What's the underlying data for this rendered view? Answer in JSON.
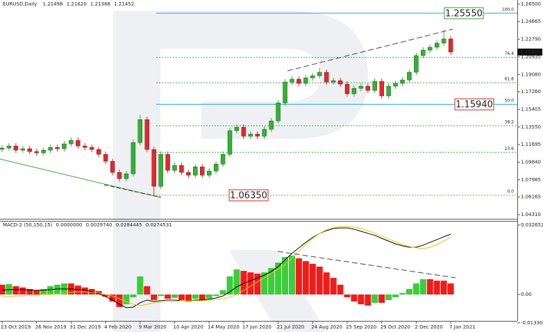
{
  "chart_data": [
    {
      "type": "candlestick",
      "title": "EURUSD,Daily",
      "last_bar": [
        {
          "value": 1.21498,
          "label": "1.21498"
        },
        {
          "value": 1.2162,
          "label": "1.21620"
        },
        {
          "value": 1.21388,
          "label": "1.21388"
        },
        {
          "value": 1.21452,
          "label": "1.21452"
        }
      ],
      "categories": [
        "23 Oct 2019",
        null,
        null,
        null,
        null,
        "26 Nov 2019",
        null,
        null,
        null,
        null,
        "31 Dec 2019",
        null,
        null,
        null,
        null,
        "4 Feb 2020",
        null,
        null,
        null,
        null,
        "9 Mar 2020",
        null,
        null,
        null,
        null,
        "10 Apr 2020",
        null,
        null,
        null,
        null,
        "14 May 2020",
        null,
        null,
        null,
        null,
        "17 Jun 2020",
        null,
        null,
        null,
        null,
        "21 Jul 2020",
        null,
        null,
        null,
        null,
        "24 Aug 2020",
        null,
        null,
        null,
        null,
        "25 Sep 2020",
        null,
        null,
        null,
        null,
        "29 Oct 2020",
        null,
        null,
        null,
        null,
        "2 Dec 2020",
        null,
        null,
        null,
        null,
        "7 Jan 2021"
      ],
      "open": [
        1.112,
        1.1133,
        1.1155,
        1.1111,
        1.1126,
        1.1096,
        1.1082,
        1.1111,
        1.114,
        1.1126,
        1.1177,
        1.1214,
        1.1155,
        1.114,
        1.1118,
        1.1067,
        1.0994,
        1.0876,
        1.081,
        1.0862,
        1.1191,
        1.1433,
        1.1118,
        1.073,
        1.1067,
        1.0898,
        1.095,
        1.0876,
        1.0847,
        1.0935,
        1.0847,
        1.0891,
        1.0964,
        1.1067,
        1.1316,
        1.1353,
        1.1258,
        1.128,
        1.1258,
        1.1331,
        1.1419,
        1.1609,
        1.1829,
        1.1859,
        1.1815,
        1.1873,
        1.1895,
        1.1932,
        1.1829,
        1.1844,
        1.1807,
        1.1705,
        1.1763,
        1.1785,
        1.1741,
        1.1837,
        1.1683,
        1.1785,
        1.1815,
        1.1851,
        1.1932,
        1.2108,
        1.2166,
        1.2196,
        1.224,
        1.2284
      ],
      "high": [
        1.1163,
        1.1185,
        1.1185,
        1.1156,
        1.1156,
        1.1126,
        1.1141,
        1.117,
        1.117,
        1.1207,
        1.1244,
        1.1244,
        1.1185,
        1.117,
        1.1148,
        1.1097,
        1.1024,
        1.0906,
        1.0892,
        1.1221,
        1.1485,
        1.1463,
        1.1148,
        1.1097,
        1.1097,
        1.098,
        1.098,
        1.0906,
        1.0965,
        1.0965,
        1.0921,
        1.0994,
        1.1097,
        1.1346,
        1.1383,
        1.1383,
        1.131,
        1.131,
        1.1361,
        1.1449,
        1.1639,
        1.1859,
        1.1889,
        1.1889,
        1.1903,
        1.1925,
        1.1976,
        1.1962,
        1.1874,
        1.1874,
        1.1837,
        1.1793,
        1.1815,
        1.1815,
        1.1867,
        1.1867,
        1.1815,
        1.1845,
        1.1881,
        1.1962,
        1.2138,
        1.2196,
        1.2226,
        1.227,
        1.2379,
        1.2314
      ],
      "low": [
        1.109,
        1.1103,
        1.1081,
        1.1081,
        1.1066,
        1.1052,
        1.1052,
        1.1081,
        1.1096,
        1.1096,
        1.1147,
        1.1125,
        1.111,
        1.1088,
        1.1037,
        1.0964,
        1.0846,
        1.078,
        1.078,
        1.0832,
        1.1161,
        1.1088,
        1.0635,
        1.07,
        1.0868,
        1.0868,
        1.0846,
        1.0817,
        1.0817,
        1.0817,
        1.0817,
        1.0861,
        1.0934,
        1.1037,
        1.1286,
        1.1228,
        1.1228,
        1.1228,
        1.1228,
        1.1301,
        1.1389,
        1.1579,
        1.1799,
        1.1785,
        1.1785,
        1.1843,
        1.1865,
        1.1799,
        1.1799,
        1.1777,
        1.1675,
        1.1675,
        1.1733,
        1.1711,
        1.1711,
        1.1653,
        1.1653,
        1.1755,
        1.1785,
        1.1821,
        1.1902,
        1.2078,
        1.2136,
        1.2166,
        1.221,
        1.2115
      ],
      "close": [
        1.1133,
        1.1155,
        1.1111,
        1.1126,
        1.1096,
        1.1082,
        1.1111,
        1.114,
        1.1126,
        1.1177,
        1.1214,
        1.1155,
        1.114,
        1.1118,
        1.1067,
        1.0994,
        1.0876,
        1.081,
        1.0862,
        1.1191,
        1.1433,
        1.1118,
        1.073,
        1.1067,
        1.0898,
        1.095,
        1.0876,
        1.0847,
        1.0935,
        1.0847,
        1.0891,
        1.0964,
        1.1067,
        1.1316,
        1.1353,
        1.1258,
        1.128,
        1.1258,
        1.1331,
        1.1419,
        1.1609,
        1.1829,
        1.1859,
        1.1815,
        1.1873,
        1.1895,
        1.1932,
        1.1829,
        1.1844,
        1.1807,
        1.1705,
        1.1763,
        1.1785,
        1.1741,
        1.1837,
        1.1683,
        1.1785,
        1.1815,
        1.1851,
        1.1932,
        1.2108,
        1.2166,
        1.2196,
        1.224,
        1.2284,
        1.2145
      ],
      "up_color": "#2fb52f",
      "down_color": "#e8262b",
      "ylim": [
        1.0387,
        1.2694
      ],
      "yticks": [
        {
          "value": 1.265,
          "label": "1.26500"
        },
        {
          "value": 1.24665,
          "label": "1.24665"
        },
        {
          "value": 1.2279,
          "label": "1.22790"
        },
        {
          "value": 1.20935,
          "label": "1.20935"
        },
        {
          "value": 1.1908,
          "label": "1.19080"
        },
        {
          "value": 1.1726,
          "label": "1.17260"
        },
        {
          "value": 1.15405,
          "label": "1.15405"
        },
        {
          "value": 1.1355,
          "label": "1.13550"
        },
        {
          "value": 1.11695,
          "label": "1.11695"
        },
        {
          "value": 1.0984,
          "label": "1.09840"
        },
        {
          "value": 1.07985,
          "label": "1.07985"
        },
        {
          "value": 1.06165,
          "label": "1.06165"
        },
        {
          "value": 1.0431,
          "label": "1.04310"
        }
      ],
      "fib_levels": [
        {
          "ratio": {
            "value": 100,
            "label": "100.0"
          },
          "price": 1.2555,
          "color": "#19a9d6",
          "style": "solid"
        },
        {
          "ratio": {
            "value": 76.4,
            "label": "76.4"
          },
          "price": 1.2089,
          "color": "#19a9d6",
          "style": "dotted"
        },
        {
          "ratio": {
            "value": 61.8,
            "label": "61.8"
          },
          "price": 1.1822,
          "color": "#3aa83a",
          "style": "dotted"
        },
        {
          "ratio": {
            "value": 50,
            "label": "50.0"
          },
          "price": 1.1594,
          "color": "#19a9d6",
          "style": "solid"
        },
        {
          "ratio": {
            "value": 38.2,
            "label": "38.2"
          },
          "price": 1.1368,
          "color": "#3aa83a",
          "style": "dotted"
        },
        {
          "ratio": {
            "value": 23.6,
            "label": "23.6"
          },
          "price": 1.1088,
          "color": "#3aa83a",
          "style": "dotted"
        },
        {
          "ratio": {
            "value": 0,
            "label": "0.0"
          },
          "price": 1.0635,
          "color": "#a8a800",
          "style": "dotted"
        }
      ],
      "price_boxes": [
        {
          "value": 1.2555,
          "label": "1.25550",
          "color": "#2e9e2e"
        },
        {
          "value": 1.1594,
          "label": "1.15940",
          "color": "#e02020"
        },
        {
          "value": 1.0635,
          "label": "1.06350",
          "color": "#e02020"
        }
      ],
      "last_price": {
        "value": 1.21452,
        "label": "1.21452"
      }
    },
    {
      "type": "macd",
      "title": "MACD-2 (50,150,15)",
      "indicator_values": [
        {
          "value": 0,
          "label": "0.0000000"
        },
        {
          "value": 0.002974,
          "label": "0.0029740"
        },
        {
          "value": 0.0284445,
          "label": "0.0284445"
        },
        {
          "value": 0.0274531,
          "label": "0.0274531"
        }
      ],
      "histogram": {
        "values": [
          0.0046,
          0.0049,
          0.0039,
          0.0033,
          0.0026,
          0.002,
          0.0026,
          0.0039,
          0.0046,
          0.0052,
          0.0052,
          0.0042,
          0.0033,
          0.0026,
          0.0016,
          -0.001,
          -0.0033,
          -0.0059,
          -0.0046,
          -0.0013,
          0.0085,
          0.0039,
          -0.0026,
          -0.0007,
          -0.002,
          -0.0016,
          -0.0026,
          -0.0033,
          -0.002,
          -0.0026,
          -0.002,
          -0.0007,
          0.002,
          0.0085,
          0.0118,
          0.0111,
          0.0104,
          0.0098,
          0.0104,
          0.0124,
          0.015,
          0.0176,
          0.0183,
          0.017,
          0.0157,
          0.0144,
          0.0131,
          0.0104,
          0.0078,
          0.0046,
          -0.0013,
          -0.0033,
          -0.0046,
          -0.0052,
          -0.0039,
          -0.0039,
          -0.0026,
          -0.0013,
          0.0007,
          0.0026,
          0.0052,
          0.0072,
          0.0072,
          0.0065,
          0.0065,
          0.0052
        ],
        "up_color": "#3ccc3c",
        "down_color": "#f01c1c"
      },
      "series": [
        {
          "color": "#000000",
          "values": [
            0.002,
            0.0023,
            0.0023,
            0.0023,
            0.002,
            0.002,
            0.002,
            0.0023,
            0.0026,
            0.0026,
            0.0026,
            0.0023,
            0.002,
            0.0013,
            0.0003,
            -0.001,
            -0.0026,
            -0.0046,
            -0.0062,
            -0.0059,
            -0.0039,
            -0.0026,
            -0.0033,
            -0.0029,
            -0.0026,
            -0.0026,
            -0.0029,
            -0.0029,
            -0.0026,
            -0.0026,
            -0.0023,
            -0.0016,
            -0.0007,
            0.0013,
            0.0036,
            0.0052,
            0.0065,
            0.0078,
            0.0091,
            0.0108,
            0.0131,
            0.0163,
            0.0193,
            0.0219,
            0.0245,
            0.0268,
            0.0287,
            0.03,
            0.031,
            0.0313,
            0.0313,
            0.0307,
            0.0297,
            0.0287,
            0.0278,
            0.0264,
            0.0251,
            0.0238,
            0.0229,
            0.0222,
            0.0222,
            0.0232,
            0.0245,
            0.0258,
            0.0271,
            0.0284
          ]
        },
        {
          "color": "#f2c200",
          "values": [
            -0.001,
            -0.001,
            -0.0007,
            -0.0007,
            -0.0003,
            -0.0003,
            0,
            0,
            0.0003,
            0.0007,
            0.001,
            0.0013,
            0.0013,
            0.001,
            0.0007,
            0,
            -0.0007,
            -0.002,
            -0.0033,
            -0.0046,
            -0.0052,
            -0.0046,
            -0.0039,
            -0.0036,
            -0.0033,
            -0.0033,
            -0.0029,
            -0.0029,
            -0.0029,
            -0.0029,
            -0.0026,
            -0.0023,
            -0.002,
            -0.0013,
            0,
            0.002,
            0.0039,
            0.0059,
            0.0078,
            0.0098,
            0.0118,
            0.014,
            0.017,
            0.0203,
            0.0235,
            0.0264,
            0.0287,
            0.0304,
            0.0313,
            0.032,
            0.032,
            0.0317,
            0.031,
            0.03,
            0.0287,
            0.0274,
            0.0261,
            0.0248,
            0.0235,
            0.0225,
            0.0219,
            0.0216,
            0.0222,
            0.0235,
            0.0251,
            0.027
          ]
        }
      ],
      "ylim": [
        -0.0124,
        0.0346
      ],
      "yticks": [
        0.0326523,
        {
          "value": 0,
          "label": "0.00"
        },
        -0.0133044
      ]
    }
  ]
}
